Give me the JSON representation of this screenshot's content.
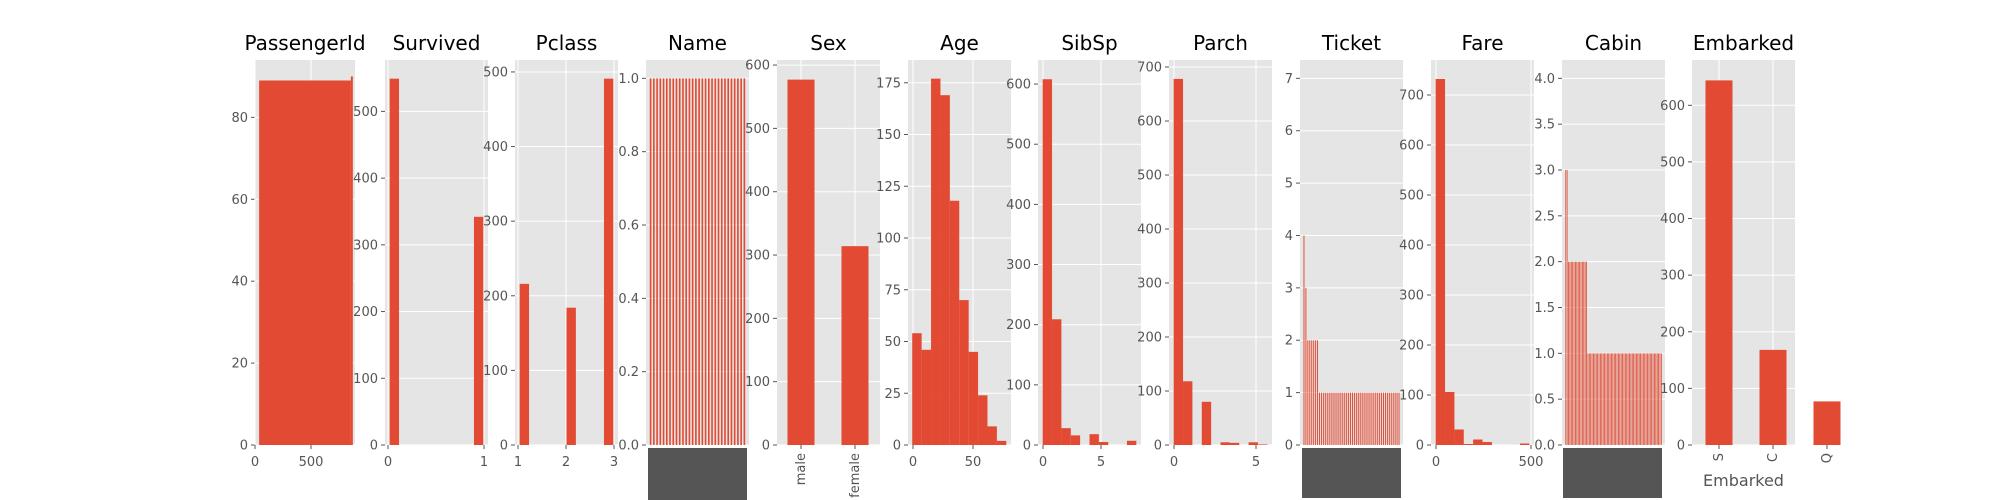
{
  "colors": {
    "bar": "#E24A33",
    "panel_bg": "#E5E5E5",
    "grid": "#FFFFFF",
    "tick": "#555555",
    "dense_labels": "#555555"
  },
  "chart_data": [
    {
      "type": "bar",
      "title": "PassengerId",
      "x_tick_labels": [
        "0",
        "500"
      ],
      "xlim": [
        -40,
        931
      ],
      "ylim": [
        0,
        94
      ],
      "y_ticks": [
        0,
        20,
        40,
        60,
        80
      ],
      "bars": [
        {
          "x0": 0,
          "x1": 891,
          "y": 89
        },
        {
          "x0": 891,
          "x1": 910,
          "y": 90
        }
      ]
    },
    {
      "type": "bar",
      "title": "Survived",
      "x_tick_labels": [
        "0",
        "1"
      ],
      "xlim": [
        -0.05,
        1.05
      ],
      "ylim": [
        0,
        577
      ],
      "y_ticks": [
        0,
        100,
        200,
        300,
        400,
        500
      ],
      "bars": [
        {
          "x0": 0,
          "x1": 0.1,
          "y": 549
        },
        {
          "x0": 0.9,
          "x1": 1,
          "y": 342
        }
      ]
    },
    {
      "type": "bar",
      "title": "Pclass",
      "x_tick_labels": [
        "1",
        "2",
        "3"
      ],
      "xlim": [
        0.9,
        3.1
      ],
      "ylim": [
        0,
        516
      ],
      "y_ticks": [
        0,
        100,
        200,
        300,
        400,
        500
      ],
      "bars": [
        {
          "x0": 1,
          "x1": 1.2,
          "y": 216
        },
        {
          "x0": 2,
          "x1": 2.2,
          "y": 184
        },
        {
          "x0": 2.8,
          "x1": 3,
          "y": 491
        }
      ]
    },
    {
      "type": "bar",
      "title": "Name",
      "ylim": [
        0,
        1.05
      ],
      "y_ticks": [
        0,
        0.2,
        0.4,
        0.6,
        0.8,
        1.0
      ],
      "y_tick_labels": [
        "0.0",
        "0.2",
        "0.4",
        "0.6",
        "0.8",
        "1.0"
      ],
      "uniform_bars": {
        "count": 30,
        "value": 1.0
      }
    },
    {
      "type": "bar",
      "title": "Sex",
      "x_tick_labels": [
        "male",
        "female"
      ],
      "ylim": [
        0,
        608
      ],
      "y_ticks": [
        0,
        100,
        200,
        300,
        400,
        500,
        600
      ],
      "values": [
        577,
        314
      ]
    },
    {
      "type": "bar",
      "title": "Age",
      "x_tick_labels": [
        "0",
        "50"
      ],
      "xlim": [
        -3.6,
        84
      ],
      "ylim": [
        0,
        186
      ],
      "y_ticks": [
        0,
        25,
        50,
        75,
        100,
        125,
        150,
        175
      ],
      "bars": [
        {
          "x0": 0,
          "x1": 8,
          "y": 54
        },
        {
          "x0": 8,
          "x1": 16,
          "y": 46
        },
        {
          "x0": 16,
          "x1": 24,
          "y": 177
        },
        {
          "x0": 24,
          "x1": 32,
          "y": 169
        },
        {
          "x0": 32,
          "x1": 40,
          "y": 118
        },
        {
          "x0": 40,
          "x1": 48,
          "y": 70
        },
        {
          "x0": 48,
          "x1": 56,
          "y": 45
        },
        {
          "x0": 56,
          "x1": 64,
          "y": 24
        },
        {
          "x0": 64,
          "x1": 72,
          "y": 9
        },
        {
          "x0": 72,
          "x1": 80,
          "y": 2
        }
      ]
    },
    {
      "type": "bar",
      "title": "SibSp",
      "x_tick_labels": [
        "0",
        "5"
      ],
      "xlim": [
        -0.4,
        8.4
      ],
      "ylim": [
        0,
        640
      ],
      "y_ticks": [
        0,
        100,
        200,
        300,
        400,
        500,
        600
      ],
      "bars": [
        {
          "x0": 0,
          "x1": 0.8,
          "y": 608
        },
        {
          "x0": 0.8,
          "x1": 1.6,
          "y": 209
        },
        {
          "x0": 1.6,
          "x1": 2.4,
          "y": 28
        },
        {
          "x0": 2.4,
          "x1": 3.2,
          "y": 16
        },
        {
          "x0": 3.2,
          "x1": 4.0,
          "y": 0
        },
        {
          "x0": 4.0,
          "x1": 4.8,
          "y": 18
        },
        {
          "x0": 4.8,
          "x1": 5.6,
          "y": 5
        },
        {
          "x0": 7.2,
          "x1": 8.0,
          "y": 7
        }
      ]
    },
    {
      "type": "bar",
      "title": "Parch",
      "x_tick_labels": [
        "0",
        "5"
      ],
      "xlim": [
        -0.3,
        6.3
      ],
      "ylim": [
        0,
        713
      ],
      "y_ticks": [
        0,
        100,
        200,
        300,
        400,
        500,
        600,
        700
      ],
      "bars": [
        {
          "x0": 0,
          "x1": 0.6,
          "y": 678
        },
        {
          "x0": 0.6,
          "x1": 1.2,
          "y": 118
        },
        {
          "x0": 1.8,
          "x1": 2.4,
          "y": 80
        },
        {
          "x0": 3.0,
          "x1": 3.6,
          "y": 5
        },
        {
          "x0": 3.6,
          "x1": 4.2,
          "y": 4
        },
        {
          "x0": 4.8,
          "x1": 5.4,
          "y": 5
        },
        {
          "x0": 5.4,
          "x1": 6.0,
          "y": 1
        }
      ]
    },
    {
      "type": "bar",
      "title": "Ticket",
      "ylim": [
        0,
        7.35
      ],
      "y_ticks": [
        0,
        1,
        2,
        3,
        4,
        5,
        6,
        7
      ],
      "values": [
        4,
        3,
        2,
        2,
        2,
        2,
        2,
        2,
        1,
        1,
        1,
        1,
        1,
        1,
        1,
        1,
        1,
        1,
        1,
        1,
        1,
        1,
        1,
        1,
        1,
        1,
        1,
        1,
        1,
        1,
        1,
        1,
        1,
        1,
        1,
        1,
        1,
        1,
        1,
        1,
        1,
        1,
        1,
        1,
        1,
        1,
        1,
        1,
        1,
        1
      ]
    },
    {
      "type": "bar",
      "title": "Fare",
      "x_tick_labels": [
        "0",
        "500"
      ],
      "xlim": [
        -25.6,
        537.9
      ],
      "ylim": [
        0,
        770
      ],
      "y_ticks": [
        0,
        100,
        200,
        300,
        400,
        500,
        600,
        700
      ],
      "bars": [
        {
          "x0": 0,
          "x1": 51.2,
          "y": 732
        },
        {
          "x0": 51.2,
          "x1": 102.5,
          "y": 106
        },
        {
          "x0": 102.5,
          "x1": 153.7,
          "y": 31
        },
        {
          "x0": 153.7,
          "x1": 204.9,
          "y": 2
        },
        {
          "x0": 204.9,
          "x1": 256.2,
          "y": 11
        },
        {
          "x0": 256.2,
          "x1": 307.4,
          "y": 6
        },
        {
          "x0": 461.1,
          "x1": 512.3,
          "y": 3
        }
      ]
    },
    {
      "type": "bar",
      "title": "Cabin",
      "ylim": [
        0,
        4.2
      ],
      "y_ticks": [
        0,
        0.5,
        1.0,
        1.5,
        2.0,
        2.5,
        3.0,
        3.5,
        4.0
      ],
      "y_tick_labels": [
        "0.0",
        "0.5",
        "1.0",
        "1.5",
        "2.0",
        "2.5",
        "3.0",
        "3.5",
        "4.0"
      ],
      "values": [
        3,
        3,
        2,
        2,
        2,
        2,
        2,
        2,
        2,
        2,
        2,
        2,
        2,
        2,
        2,
        2,
        1,
        1,
        1,
        1,
        1,
        1,
        1,
        1,
        1,
        1,
        1,
        1,
        1,
        1,
        1,
        1,
        1,
        1,
        1,
        1,
        1,
        1,
        1,
        1,
        1,
        1,
        1,
        1,
        1,
        1,
        1,
        1,
        1,
        1,
        1,
        1,
        1,
        1,
        1,
        1,
        1,
        1,
        1,
        1,
        1,
        1,
        1,
        1,
        1,
        1,
        1,
        1,
        1,
        1
      ]
    },
    {
      "type": "bar",
      "title": "Embarked",
      "xlabel": "Embarked",
      "x_tick_labels": [
        "S",
        "C",
        "Q"
      ],
      "ylim": [
        0,
        680
      ],
      "y_ticks": [
        0,
        100,
        200,
        300,
        400,
        500,
        600
      ],
      "values": [
        644,
        168,
        77
      ]
    }
  ]
}
